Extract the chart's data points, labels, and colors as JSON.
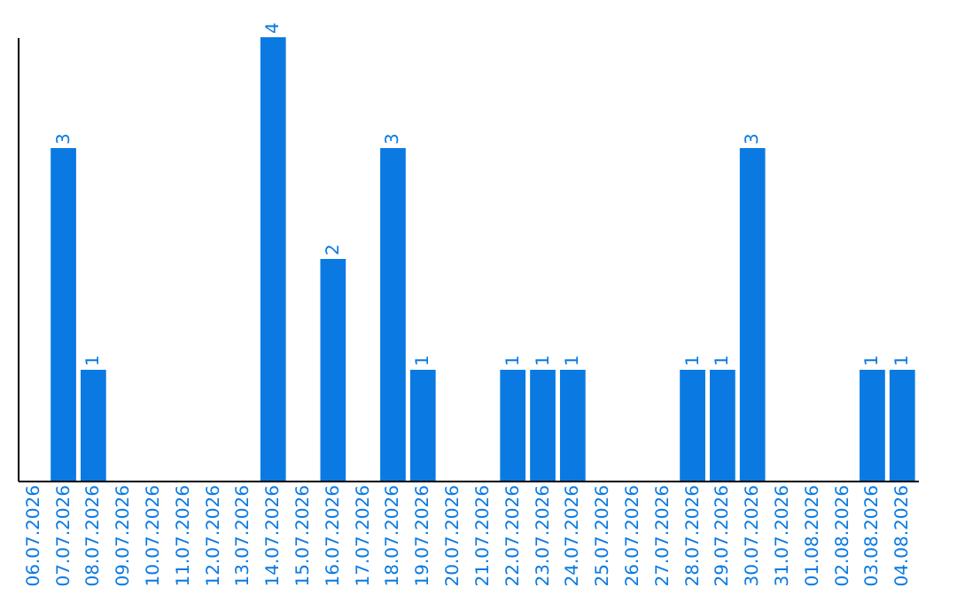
{
  "chart_data": {
    "type": "bar",
    "categories": [
      "06.07.2026",
      "07.07.2026",
      "08.07.2026",
      "09.07.2026",
      "10.07.2026",
      "11.07.2026",
      "12.07.2026",
      "13.07.2026",
      "14.07.2026",
      "15.07.2026",
      "16.07.2026",
      "17.07.2026",
      "18.07.2026",
      "19.07.2026",
      "20.07.2026",
      "21.07.2026",
      "22.07.2026",
      "23.07.2026",
      "24.07.2026",
      "25.07.2026",
      "26.07.2026",
      "27.07.2026",
      "28.07.2026",
      "29.07.2026",
      "30.07.2026",
      "31.07.2026",
      "01.08.2026",
      "02.08.2026",
      "03.08.2026",
      "04.08.2026"
    ],
    "values": [
      0,
      3,
      1,
      0,
      0,
      0,
      0,
      0,
      4,
      0,
      2,
      0,
      3,
      1,
      0,
      0,
      1,
      1,
      1,
      0,
      0,
      0,
      1,
      1,
      3,
      0,
      0,
      0,
      1,
      1
    ],
    "value_labels": [
      null,
      "3",
      "1",
      null,
      null,
      null,
      null,
      null,
      "4",
      null,
      "2",
      null,
      "3",
      "1",
      null,
      null,
      "1",
      "1",
      "1",
      null,
      null,
      null,
      "1",
      "1",
      "3",
      null,
      null,
      null,
      "1",
      "1"
    ],
    "color": "#0a7ae2",
    "tick_labels": "x",
    "grid": false
  }
}
